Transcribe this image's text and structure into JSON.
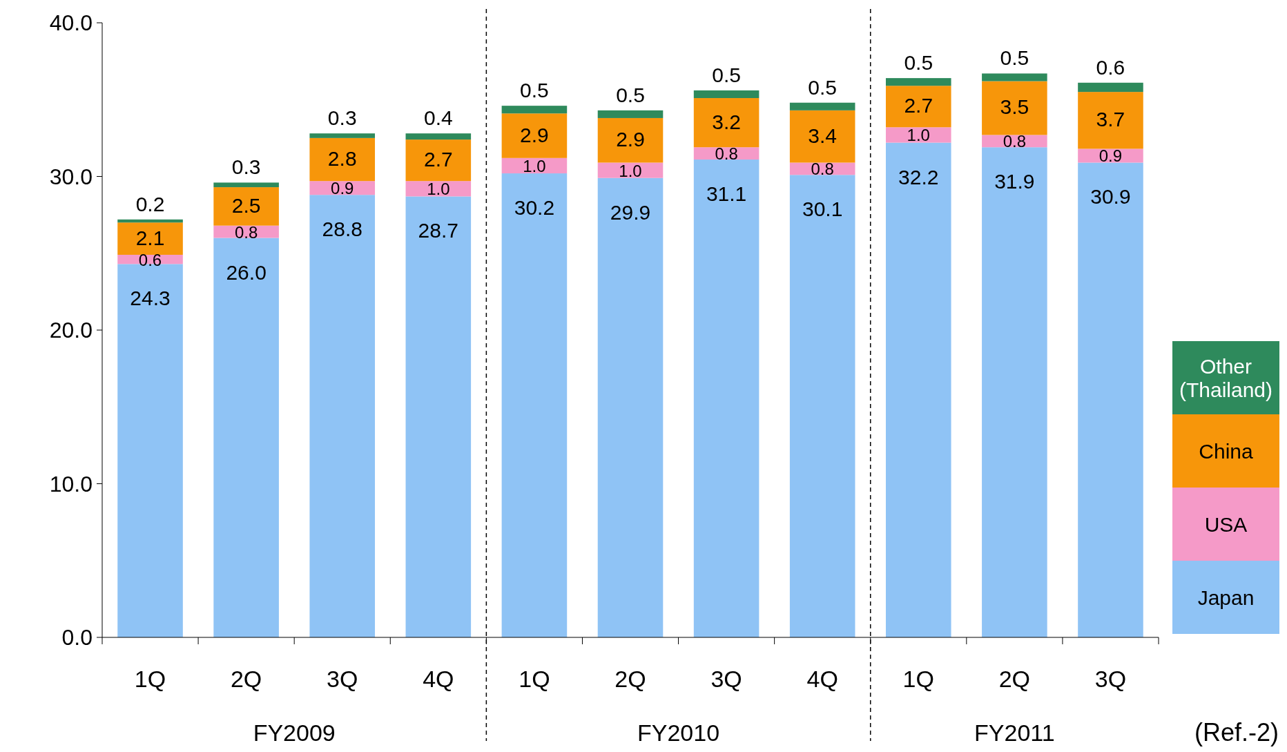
{
  "chart_data": {
    "type": "bar",
    "stacked": true,
    "categories": [
      "1Q",
      "2Q",
      "3Q",
      "4Q",
      "1Q",
      "2Q",
      "3Q",
      "4Q",
      "1Q",
      "2Q",
      "3Q"
    ],
    "series": [
      {
        "name": "Japan",
        "color": "#8fc3f5",
        "values": [
          24.3,
          26.0,
          28.8,
          28.7,
          30.2,
          29.9,
          31.1,
          30.1,
          32.2,
          31.9,
          30.9
        ],
        "value_labels": [
          "24.3",
          "26.0",
          "28.8",
          "28.7",
          "30.2",
          "29.9",
          "31.1",
          "30.1",
          "32.2",
          "31.9",
          "30.9"
        ]
      },
      {
        "name": "USA",
        "color": "#f59ac8",
        "values": [
          0.6,
          0.8,
          0.9,
          1.0,
          1.0,
          1.0,
          0.8,
          0.8,
          1.0,
          0.8,
          0.9
        ],
        "value_labels": [
          "0.6",
          "0.8",
          "0.9",
          "1.0",
          "1.0",
          "1.0",
          "0.8",
          "0.8",
          "1.0",
          "0.8",
          "0.9"
        ]
      },
      {
        "name": "China",
        "color": "#f7960a",
        "values": [
          2.1,
          2.5,
          2.8,
          2.7,
          2.9,
          2.9,
          3.2,
          3.4,
          2.7,
          3.5,
          3.7
        ],
        "value_labels": [
          "2.1",
          "2.5",
          "2.8",
          "2.7",
          "2.9",
          "2.9",
          "3.2",
          "3.4",
          "2.7",
          "3.5",
          "3.7"
        ]
      },
      {
        "name": "Other (Thailand)",
        "color": "#2e8a5c",
        "values": [
          0.2,
          0.3,
          0.3,
          0.4,
          0.5,
          0.5,
          0.5,
          0.5,
          0.5,
          0.5,
          0.6
        ],
        "value_labels": [
          "0.2",
          "0.3",
          "0.3",
          "0.4",
          "0.5",
          "0.5",
          "0.5",
          "0.5",
          "0.5",
          "0.5",
          "0.6"
        ]
      }
    ],
    "ylim": [
      0,
      40
    ],
    "yticks": [
      {
        "value": 0,
        "label": "0.0"
      },
      {
        "value": 10,
        "label": "10.0"
      },
      {
        "value": 20,
        "label": "20.0"
      },
      {
        "value": 30,
        "label": "30.0"
      },
      {
        "value": 40,
        "label": "40.0"
      }
    ],
    "legend": "bottom right",
    "annotations": [
      "FY2009",
      "FY2010",
      "FY2011",
      "(Ref.-2)"
    ]
  }
}
